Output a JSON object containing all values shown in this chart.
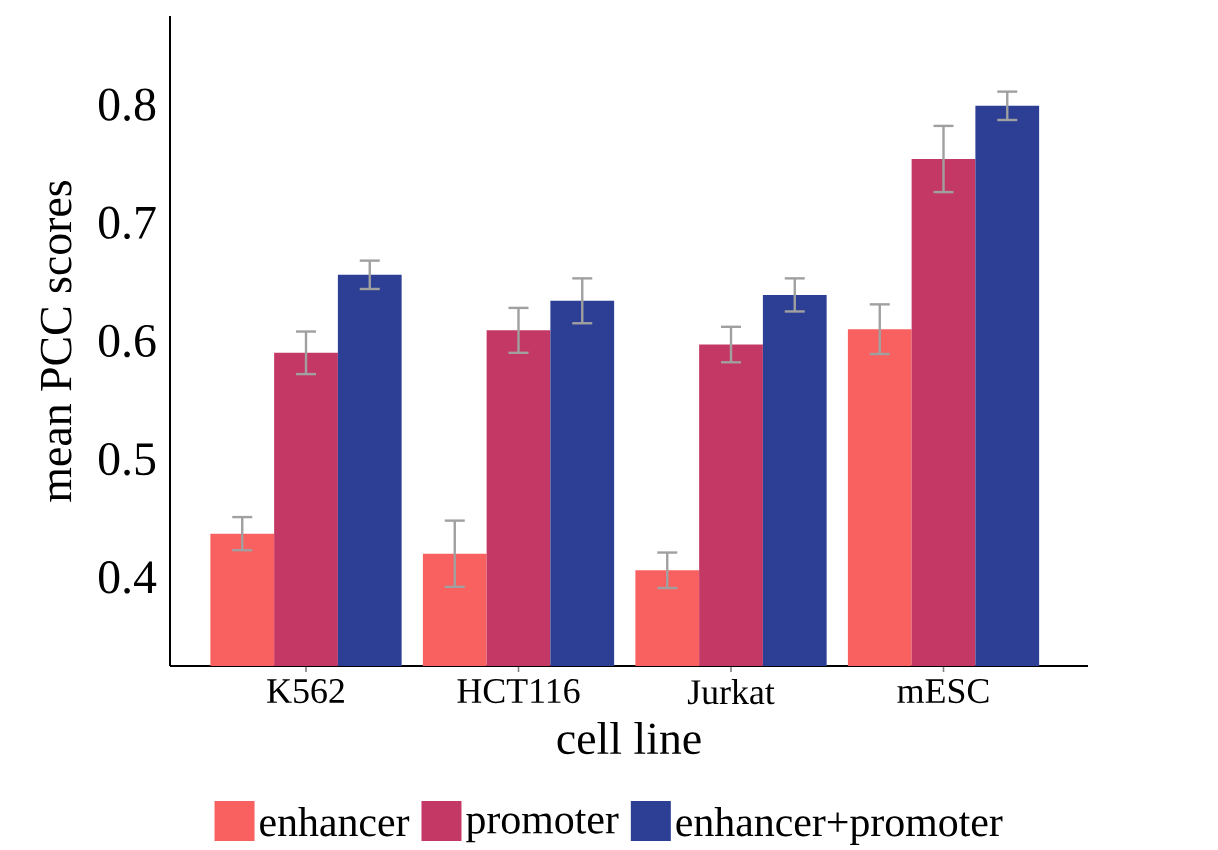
{
  "chart_data": {
    "type": "bar",
    "xlabel": "cell line",
    "ylabel": "mean PCC scores",
    "categories": [
      "K562",
      "HCT116",
      "Jurkat",
      "mESC"
    ],
    "series": [
      {
        "name": "enhancer",
        "color": "#f8615f",
        "values": [
          0.437,
          0.42,
          0.406,
          0.61
        ],
        "errors": [
          0.014,
          0.028,
          0.015,
          0.021
        ]
      },
      {
        "name": "promoter",
        "color": "#c43866",
        "values": [
          0.59,
          0.609,
          0.597,
          0.754
        ],
        "errors": [
          0.018,
          0.019,
          0.015,
          0.028
        ]
      },
      {
        "name": "enhancer+promoter",
        "color": "#2c3f94",
        "values": [
          0.656,
          0.634,
          0.639,
          0.799
        ],
        "errors": [
          0.012,
          0.019,
          0.014,
          0.012
        ]
      }
    ],
    "ylim": [
      0.325,
      0.875
    ],
    "yticks": [
      0.4,
      0.5,
      0.6,
      0.7,
      0.8
    ],
    "legend": "bottom"
  }
}
